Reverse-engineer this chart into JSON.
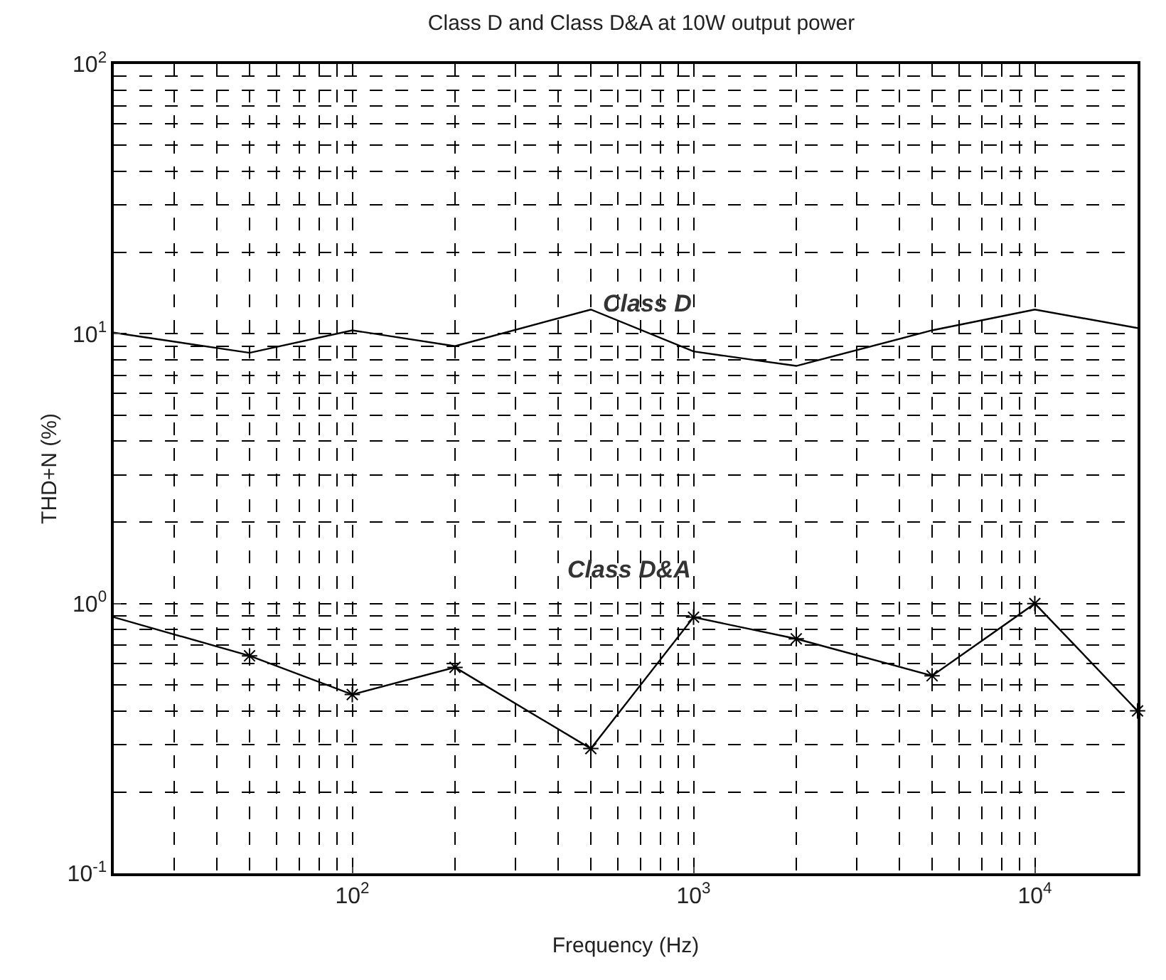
{
  "chart_data": {
    "type": "line",
    "title": "Class D and Class D&A at 10W output power",
    "xlabel": "Frequency (Hz)",
    "ylabel": "THD+N (%)",
    "x": [
      20,
      50,
      100,
      200,
      500,
      1000,
      2000,
      5000,
      10000,
      20000
    ],
    "series": [
      {
        "name": "Class D",
        "color": "#000000",
        "marker": "none",
        "values": [
          10.1,
          8.5,
          10.3,
          9.0,
          12.3,
          8.6,
          7.6,
          10.3,
          12.3,
          10.5
        ]
      },
      {
        "name": "Class D&A",
        "color": "#000000",
        "marker": "cross",
        "values": [
          0.89,
          0.64,
          0.46,
          0.58,
          0.29,
          0.89,
          0.74,
          0.54,
          1.0,
          0.4
        ]
      }
    ],
    "log": "xy",
    "xlim": [
      20,
      20000
    ],
    "ylim": [
      0.1,
      100
    ],
    "xticks": [
      {
        "value": 100,
        "label": "10$^{2}$"
      },
      {
        "value": 1000,
        "label": "10$^{3}$"
      },
      {
        "value": 10000,
        "label": "10$^{4}$"
      }
    ],
    "yticks": [
      {
        "value": 0.1,
        "label": "10$^{-1}$"
      },
      {
        "value": 1,
        "label": "10$^{0}$"
      },
      {
        "value": 10,
        "label": "10$^{1}$"
      },
      {
        "value": 100,
        "label": "10$^{2}$"
      }
    ],
    "grid": true,
    "legend": false,
    "line_style": "solid"
  }
}
